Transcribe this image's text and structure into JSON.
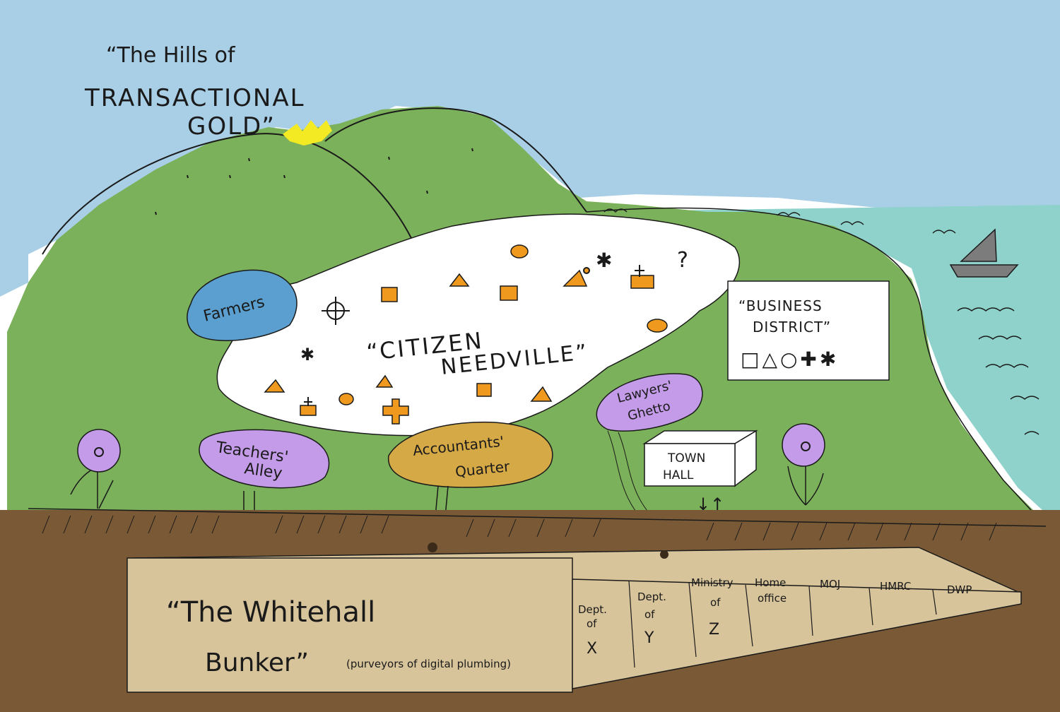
{
  "title": {
    "line1": "“The Hills of",
    "line2": "TRANSACTIONAL",
    "line3": "GOLD”"
  },
  "city": {
    "line1": "“CITIZEN",
    "line2": "NEEDVILLE”"
  },
  "areas": {
    "farmers": "Farmers",
    "teachers_line1": "Teachers'",
    "teachers_line2": "Alley",
    "accountants_line1": "Accountants'",
    "accountants_line2": "Quarter",
    "lawyers_line1": "Lawyers'",
    "lawyers_line2": "Ghetto"
  },
  "business": {
    "line1": "“BUSINESS",
    "line2": "DISTRICT”",
    "symbols": "□△○✚✱"
  },
  "town_hall": {
    "line1": "TOWN",
    "line2": "HALL",
    "arrows": "↓↑"
  },
  "bunker": {
    "line1": "“The Whitehall",
    "line2": "Bunker”",
    "subtitle": "(purveyors of digital plumbing)",
    "departments": [
      {
        "l1": "Dept.",
        "l2": "of",
        "l3": "X"
      },
      {
        "l1": "Dept.",
        "l2": "of",
        "l3": "Y"
      },
      {
        "l1": "Ministry",
        "l2": "of",
        "l3": "Z"
      },
      {
        "l1": "Home",
        "l2": "office",
        "l3": ""
      },
      {
        "l1": "MOJ",
        "l2": "",
        "l3": ""
      },
      {
        "l1": "HMRC",
        "l2": "",
        "l3": ""
      },
      {
        "l1": "DWP",
        "l2": "",
        "l3": ""
      }
    ]
  },
  "city_symbols": {
    "question": "?",
    "asterisk": "✱"
  },
  "colors": {
    "sky": "#a9cfe6",
    "hill": "#7bb15a",
    "hill_dark": "#6aa24c",
    "sea": "#8ed2cb",
    "soil": "#7a5a36",
    "bunker": "#d8c49a",
    "farmers": "#5a9fcf",
    "purple": "#c39be8",
    "accountants": "#d5a945",
    "orange": "#ef9a1e",
    "gold": "#f3ea24"
  }
}
